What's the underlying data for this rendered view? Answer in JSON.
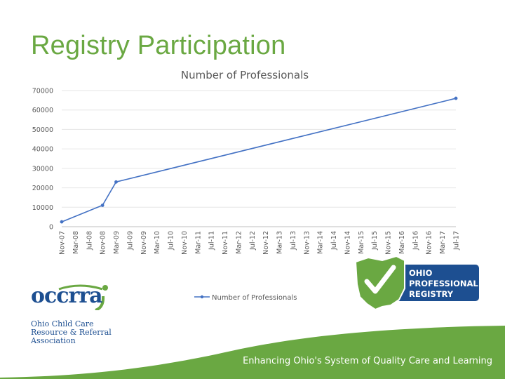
{
  "slide": {
    "title": "Registry Participation",
    "footer": "Enhancing Ohio's System of Quality Care and Learning"
  },
  "logos": {
    "occrra": {
      "wordmark": "occrra",
      "subtitle": "Ohio Child Care\nResource & Referral\nAssociation"
    },
    "registry": {
      "text": "OHIO\nPROFESSIONAL\nREGISTRY"
    }
  },
  "colors": {
    "title_green": "#6aa842",
    "series_line": "#4472c4",
    "footer_wave": "#6aa842",
    "registry_navy": "#1d4f91"
  },
  "chart_data": {
    "type": "line",
    "title": "Number of Professionals",
    "x_labels": [
      "Nov-07",
      "Mar-08",
      "Jul-08",
      "Nov-08",
      "Mar-09",
      "Jul-09",
      "Nov-09",
      "Mar-10",
      "Jul-10",
      "Nov-10",
      "Mar-11",
      "Jul-11",
      "Nov-11",
      "Mar-12",
      "Jul-12",
      "Nov-12",
      "Mar-13",
      "Jul-13",
      "Nov-13",
      "Mar-14",
      "Jul-14",
      "Nov-14",
      "Mar-15",
      "Jul-15",
      "Nov-15",
      "Mar-16",
      "Jul-16",
      "Nov-16",
      "Mar-17",
      "Jul-17"
    ],
    "series": [
      {
        "name": "Number of Professionals",
        "points": [
          {
            "x": "Nov-07",
            "y": 2500
          },
          {
            "x": "Nov-08",
            "y": 11000
          },
          {
            "x": "Mar-09",
            "y": 23000
          },
          {
            "x": "Jul-17",
            "y": 66000
          }
        ]
      }
    ],
    "y_ticks": [
      0,
      10000,
      20000,
      30000,
      40000,
      50000,
      60000,
      70000
    ],
    "ylim": [
      0,
      70000
    ],
    "grid": true,
    "legend": "bottom"
  }
}
